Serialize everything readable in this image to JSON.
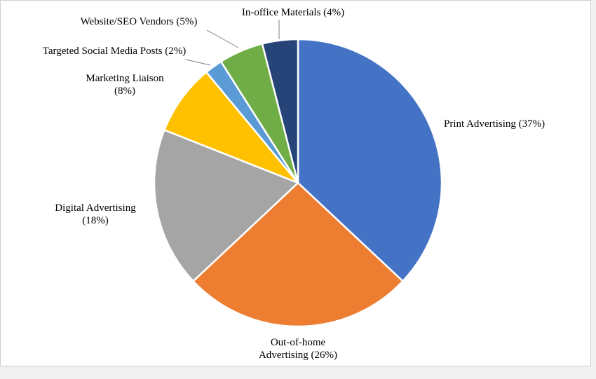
{
  "chart_data": {
    "type": "pie",
    "title": "",
    "start_angle_deg": 0,
    "direction": "clockwise",
    "slices": [
      {
        "label": "Print Advertising (37%)",
        "lines": [
          "Print Advertising (37%)"
        ],
        "value": 37,
        "color": "#4472c4"
      },
      {
        "label": "Out-of-home Advertising (26%)",
        "lines": [
          "Out-of-home",
          "Advertising  (26%)"
        ],
        "value": 26,
        "color": "#ed7d31"
      },
      {
        "label": "Digital Advertising (18%)",
        "lines": [
          "Digital Advertising",
          "(18%)"
        ],
        "value": 18,
        "color": "#a5a5a5"
      },
      {
        "label": "Marketing Liaison (8%)",
        "lines": [
          "Marketing Liaison",
          "(8%)"
        ],
        "value": 8,
        "color": "#ffc000"
      },
      {
        "label": "Targeted Social Media Posts (2%)",
        "lines": [
          "Targeted Social Media Posts (2%)"
        ],
        "value": 2,
        "color": "#5b9bd5"
      },
      {
        "label": "Website/SEO Vendors (5%)",
        "lines": [
          "Website/SEO Vendors (5%)"
        ],
        "value": 5,
        "color": "#70ad47"
      },
      {
        "label": "In-office Materials (4%)",
        "lines": [
          "In-office Materials (4%)"
        ],
        "value": 4,
        "color": "#264478"
      }
    ]
  }
}
